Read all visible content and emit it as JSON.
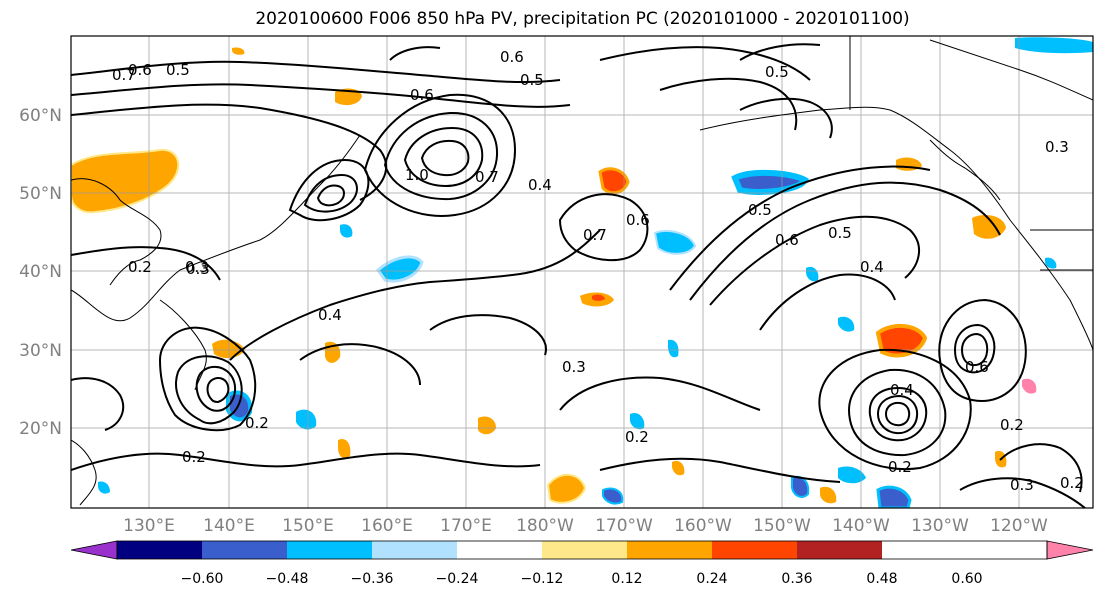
{
  "title": "2020100600 F006 850 hPa PV, precipitation PC (2020101000 - 2020101100)",
  "map": {
    "lon_labels": [
      "130°E",
      "140°E",
      "150°E",
      "160°E",
      "170°E",
      "180°W",
      "170°W",
      "160°W",
      "150°W",
      "140°W",
      "130°W",
      "120°W"
    ],
    "lat_labels": [
      "60°N",
      "50°N",
      "40°N",
      "30°N",
      "20°N"
    ],
    "contour_labels": [
      "0.6",
      "0.5",
      "0.7",
      "0.6",
      "0.5",
      "0.6",
      "0.7",
      "0.3",
      "1.0",
      "0.4",
      "0.6",
      "0.7",
      "0.5",
      "0.4",
      "0.6",
      "0.5",
      "0.2",
      "0.3",
      "0.2",
      "0.4",
      "0.3",
      "0.2",
      "0.2",
      "0.2",
      "0.4",
      "0.2",
      "0.3",
      "0.2",
      "0.6",
      "0.5",
      "0.3"
    ]
  },
  "colorbar": {
    "tick_labels": [
      "−0.60",
      "−0.48",
      "−0.36",
      "−0.24",
      "−0.12",
      "0.12",
      "0.24",
      "0.36",
      "0.48",
      "0.60"
    ],
    "colors": [
      "#9932cc",
      "#000080",
      "#3a5fcd",
      "#00bfff",
      "#b0e2ff",
      "#ffffff",
      "#ffe889",
      "#ffa500",
      "#ff4500",
      "#b22222",
      "#ff82ab"
    ]
  }
}
